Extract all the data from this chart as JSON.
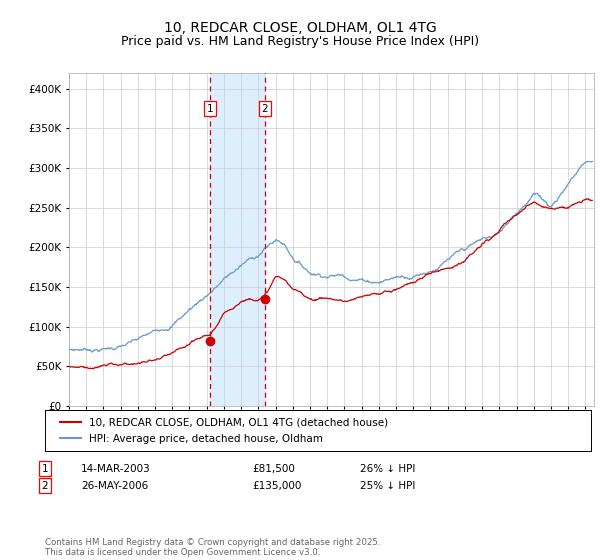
{
  "title": "10, REDCAR CLOSE, OLDHAM, OL1 4TG",
  "subtitle": "Price paid vs. HM Land Registry's House Price Index (HPI)",
  "xlim_start": 1995.0,
  "xlim_end": 2025.5,
  "ylim_min": 0,
  "ylim_max": 420000,
  "yticks": [
    0,
    50000,
    100000,
    150000,
    200000,
    250000,
    300000,
    350000,
    400000
  ],
  "sale1_year": 2003.19,
  "sale1_price": 81500,
  "sale1_label": "14-MAR-2003",
  "sale1_price_str": "£81,500",
  "sale1_hpi": "26% ↓ HPI",
  "sale2_year": 2006.39,
  "sale2_price": 135000,
  "sale2_label": "26-MAY-2006",
  "sale2_price_str": "£135,000",
  "sale2_hpi": "25% ↓ HPI",
  "red_line_color": "#cc0000",
  "blue_line_color": "#6699cc",
  "shade_color": "#ddeeff",
  "grid_color": "#cccccc",
  "background_color": "#ffffff",
  "legend1": "10, REDCAR CLOSE, OLDHAM, OL1 4TG (detached house)",
  "legend2": "HPI: Average price, detached house, Oldham",
  "footnote": "Contains HM Land Registry data © Crown copyright and database right 2025.\nThis data is licensed under the Open Government Licence v3.0.",
  "title_fontsize": 10,
  "subtitle_fontsize": 9,
  "hpi_anchors_x": [
    1995,
    1996,
    1997,
    1998,
    1999,
    2000,
    2001,
    2002,
    2003,
    2004,
    2005,
    2006,
    2007,
    2007.5,
    2008,
    2009,
    2010,
    2011,
    2012,
    2013,
    2014,
    2015,
    2016,
    2017,
    2018,
    2019,
    2020,
    2021,
    2022,
    2023,
    2024,
    2025
  ],
  "hpi_anchors_y": [
    70000,
    72000,
    74000,
    78000,
    84000,
    92000,
    105000,
    125000,
    145000,
    165000,
    182000,
    196000,
    215000,
    210000,
    195000,
    178000,
    178000,
    180000,
    178000,
    178000,
    185000,
    190000,
    200000,
    213000,
    222000,
    232000,
    238000,
    268000,
    295000,
    280000,
    310000,
    340000
  ],
  "red_anchors_x": [
    1995,
    1996,
    1997,
    1998,
    1999,
    2000,
    2001,
    2002,
    2003.19,
    2004,
    2005,
    2006,
    2006.39,
    2007,
    2007.5,
    2008,
    2009,
    2010,
    2011,
    2012,
    2013,
    2014,
    2015,
    2016,
    2017,
    2018,
    2019,
    2020,
    2021,
    2022,
    2023,
    2024,
    2025
  ],
  "red_anchors_y": [
    50000,
    50500,
    52000,
    54000,
    56000,
    59000,
    64000,
    72000,
    81500,
    105000,
    125000,
    132000,
    135000,
    158000,
    155000,
    140000,
    130000,
    132000,
    128000,
    130000,
    133000,
    140000,
    150000,
    160000,
    170000,
    182000,
    198000,
    215000,
    232000,
    248000,
    244000,
    248000,
    255000
  ]
}
